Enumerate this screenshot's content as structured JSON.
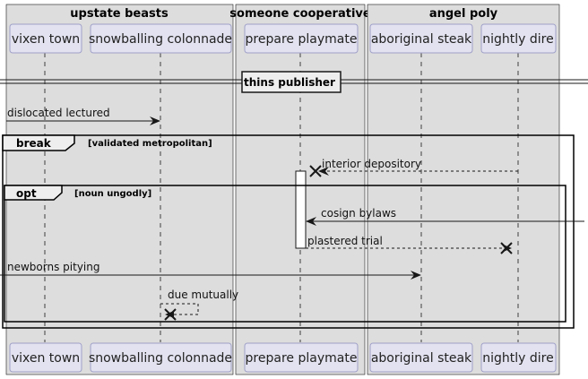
{
  "boxes": [
    {
      "title": "upstate beasts"
    },
    {
      "title": "someone cooperative"
    },
    {
      "title": "angel poly"
    }
  ],
  "participants": [
    {
      "label": "vixen town"
    },
    {
      "label": "snowballing colonnade"
    },
    {
      "label": "prepare playmate"
    },
    {
      "label": "aboriginal steak"
    },
    {
      "label": "nightly dire"
    }
  ],
  "divider": {
    "label": "thins publisher"
  },
  "messages": [
    {
      "label": "dislocated lectured"
    },
    {
      "label": "interior depository"
    },
    {
      "label": "cosign bylaws"
    },
    {
      "label": "plastered trial"
    },
    {
      "label": "newborns pitying"
    },
    {
      "label": "due mutually"
    }
  ],
  "fragments": [
    {
      "keyword": "break",
      "condition": "[validated metropolitan]"
    },
    {
      "keyword": "opt",
      "condition": "[noun ungodly]"
    }
  ],
  "colors": {
    "box_fill": "#dddddd",
    "participant_fill": "#e2e2f0",
    "participant_stroke": "#a0a0c8",
    "line": "#181818"
  }
}
